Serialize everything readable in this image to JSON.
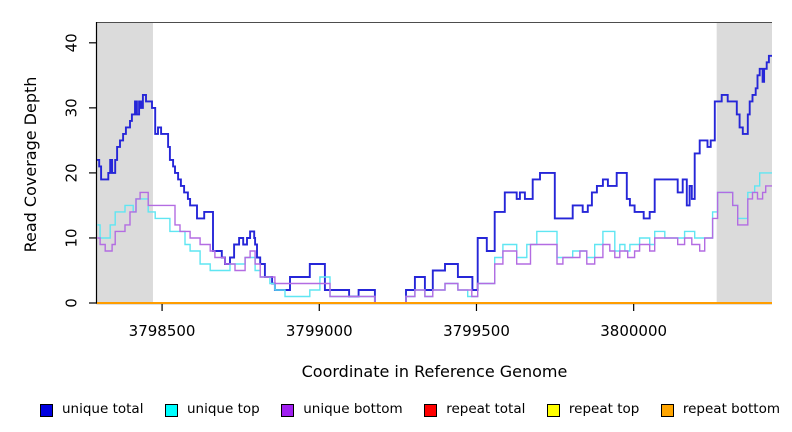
{
  "chart_data": {
    "type": "line",
    "subtype": "step",
    "title": "",
    "xlabel": "Coordinate in Reference Genome",
    "ylabel": "Read Coverage Depth",
    "xlim": [
      3798293,
      3800440
    ],
    "ylim": [
      0,
      43.2
    ],
    "grid": false,
    "legend_position": "bottom",
    "x_ticks": [
      {
        "value": 3798500,
        "label": "3798500"
      },
      {
        "value": 3799000,
        "label": "3799000"
      },
      {
        "value": 3799500,
        "label": "3799500"
      },
      {
        "value": 3800000,
        "label": "3800000"
      }
    ],
    "y_ticks": [
      {
        "value": 0,
        "label": "0"
      },
      {
        "value": 10,
        "label": "10"
      },
      {
        "value": 20,
        "label": "20"
      },
      {
        "value": 30,
        "label": "30"
      },
      {
        "value": 40,
        "label": "40"
      }
    ],
    "shaded_regions": [
      {
        "x0": 3798293,
        "x1": 3798471,
        "color": "#dbdbdb"
      },
      {
        "x0": 3800264,
        "x1": 3800440,
        "color": "#dbdbdb"
      }
    ],
    "series": [
      {
        "name": "unique total",
        "line_color": "#2626d8",
        "legend_color": "#0000e0",
        "width": 1.9,
        "points": [
          [
            3798293,
            22
          ],
          [
            3798300,
            21
          ],
          [
            3798306,
            19
          ],
          [
            3798319,
            19
          ],
          [
            3798329,
            20
          ],
          [
            3798335,
            22
          ],
          [
            3798341,
            20
          ],
          [
            3798351,
            22
          ],
          [
            3798357,
            24
          ],
          [
            3798366,
            25
          ],
          [
            3798376,
            26
          ],
          [
            3798385,
            27
          ],
          [
            3798398,
            28
          ],
          [
            3798404,
            29
          ],
          [
            3798414,
            31
          ],
          [
            3798420,
            29
          ],
          [
            3798427,
            31
          ],
          [
            3798433,
            30
          ],
          [
            3798439,
            32
          ],
          [
            3798449,
            31
          ],
          [
            3798459,
            31
          ],
          [
            3798468,
            30
          ],
          [
            3798478,
            26
          ],
          [
            3798487,
            27
          ],
          [
            3798497,
            26
          ],
          [
            3798510,
            26
          ],
          [
            3798519,
            24
          ],
          [
            3798525,
            22
          ],
          [
            3798535,
            21
          ],
          [
            3798541,
            20
          ],
          [
            3798551,
            19
          ],
          [
            3798560,
            18
          ],
          [
            3798570,
            17
          ],
          [
            3798582,
            16
          ],
          [
            3798589,
            15
          ],
          [
            3798611,
            13
          ],
          [
            3798621,
            13
          ],
          [
            3798634,
            14
          ],
          [
            3798662,
            8
          ],
          [
            3798690,
            7
          ],
          [
            3798700,
            6
          ],
          [
            3798716,
            7
          ],
          [
            3798729,
            9
          ],
          [
            3798745,
            10
          ],
          [
            3798758,
            9
          ],
          [
            3798770,
            10
          ],
          [
            3798780,
            11
          ],
          [
            3798793,
            10
          ],
          [
            3798796,
            9
          ],
          [
            3798802,
            7
          ],
          [
            3798812,
            6
          ],
          [
            3798827,
            4
          ],
          [
            3798850,
            3
          ],
          [
            3798859,
            2
          ],
          [
            3798907,
            4
          ],
          [
            3798970,
            6
          ],
          [
            3798995,
            6
          ],
          [
            3799018,
            2
          ],
          [
            3799095,
            1
          ],
          [
            3799125,
            2
          ],
          [
            3799177,
            0
          ],
          [
            3799276,
            2
          ],
          [
            3799304,
            4
          ],
          [
            3799336,
            2
          ],
          [
            3799361,
            5
          ],
          [
            3799400,
            6
          ],
          [
            3799441,
            4
          ],
          [
            3799487,
            2
          ],
          [
            3799504,
            10
          ],
          [
            3799533,
            8
          ],
          [
            3799558,
            14
          ],
          [
            3799590,
            17
          ],
          [
            3799628,
            16
          ],
          [
            3799638,
            17
          ],
          [
            3799654,
            16
          ],
          [
            3799679,
            19
          ],
          [
            3799702,
            20
          ],
          [
            3799749,
            13
          ],
          [
            3799765,
            13
          ],
          [
            3799806,
            15
          ],
          [
            3799838,
            14
          ],
          [
            3799854,
            15
          ],
          [
            3799867,
            17
          ],
          [
            3799883,
            18
          ],
          [
            3799902,
            19
          ],
          [
            3799918,
            18
          ],
          [
            3799946,
            20
          ],
          [
            3799978,
            16
          ],
          [
            3799988,
            15
          ],
          [
            3800003,
            14
          ],
          [
            3800032,
            13
          ],
          [
            3800051,
            14
          ],
          [
            3800067,
            19
          ],
          [
            3800140,
            17
          ],
          [
            3800156,
            19
          ],
          [
            3800169,
            15
          ],
          [
            3800178,
            18
          ],
          [
            3800185,
            16
          ],
          [
            3800194,
            23
          ],
          [
            3800210,
            25
          ],
          [
            3800235,
            24
          ],
          [
            3800245,
            25
          ],
          [
            3800258,
            31
          ],
          [
            3800280,
            32
          ],
          [
            3800299,
            31
          ],
          [
            3800328,
            29
          ],
          [
            3800337,
            27
          ],
          [
            3800347,
            26
          ],
          [
            3800363,
            29
          ],
          [
            3800369,
            31
          ],
          [
            3800378,
            32
          ],
          [
            3800388,
            33
          ],
          [
            3800394,
            35
          ],
          [
            3800401,
            36
          ],
          [
            3800410,
            34
          ],
          [
            3800415,
            36
          ],
          [
            3800423,
            37
          ],
          [
            3800430,
            38
          ],
          [
            3800440,
            38
          ]
        ]
      },
      {
        "name": "unique top",
        "line_color": "#5fe6f2",
        "legend_color": "#00ffff",
        "width": 1.4,
        "points": [
          [
            3798293,
            12
          ],
          [
            3798303,
            10
          ],
          [
            3798335,
            12
          ],
          [
            3798351,
            14
          ],
          [
            3798382,
            15
          ],
          [
            3798408,
            14
          ],
          [
            3798417,
            16
          ],
          [
            3798456,
            14
          ],
          [
            3798478,
            13
          ],
          [
            3798525,
            11
          ],
          [
            3798573,
            9
          ],
          [
            3798589,
            8
          ],
          [
            3798621,
            6
          ],
          [
            3798653,
            5
          ],
          [
            3798684,
            5
          ],
          [
            3798716,
            6
          ],
          [
            3798764,
            7
          ],
          [
            3798796,
            5
          ],
          [
            3798812,
            4
          ],
          [
            3798843,
            3
          ],
          [
            3798859,
            2
          ],
          [
            3798891,
            1
          ],
          [
            3798970,
            2
          ],
          [
            3799002,
            4
          ],
          [
            3799034,
            1
          ],
          [
            3799177,
            0
          ],
          [
            3799276,
            1
          ],
          [
            3799304,
            2
          ],
          [
            3799336,
            1
          ],
          [
            3799361,
            2
          ],
          [
            3799400,
            3
          ],
          [
            3799441,
            2
          ],
          [
            3799472,
            1
          ],
          [
            3799504,
            3
          ],
          [
            3799558,
            7
          ],
          [
            3799584,
            9
          ],
          [
            3799628,
            7
          ],
          [
            3799660,
            9
          ],
          [
            3799692,
            11
          ],
          [
            3799756,
            7
          ],
          [
            3799806,
            8
          ],
          [
            3799851,
            7
          ],
          [
            3799876,
            9
          ],
          [
            3799902,
            11
          ],
          [
            3799940,
            8
          ],
          [
            3799956,
            9
          ],
          [
            3799972,
            8
          ],
          [
            3799988,
            9
          ],
          [
            3800019,
            10
          ],
          [
            3800051,
            9
          ],
          [
            3800067,
            11
          ],
          [
            3800099,
            10
          ],
          [
            3800162,
            11
          ],
          [
            3800194,
            10
          ],
          [
            3800251,
            14
          ],
          [
            3800267,
            17
          ],
          [
            3800315,
            15
          ],
          [
            3800331,
            13
          ],
          [
            3800363,
            17
          ],
          [
            3800385,
            18
          ],
          [
            3800401,
            20
          ],
          [
            3800440,
            20
          ]
        ]
      },
      {
        "name": "unique bottom",
        "line_color": "#b36ce2",
        "legend_color": "#a020f0",
        "width": 1.4,
        "points": [
          [
            3798293,
            10
          ],
          [
            3798303,
            9
          ],
          [
            3798319,
            8
          ],
          [
            3798341,
            9
          ],
          [
            3798351,
            11
          ],
          [
            3798382,
            12
          ],
          [
            3798398,
            14
          ],
          [
            3798417,
            16
          ],
          [
            3798430,
            17
          ],
          [
            3798456,
            15
          ],
          [
            3798478,
            15
          ],
          [
            3798541,
            12
          ],
          [
            3798557,
            11
          ],
          [
            3798589,
            10
          ],
          [
            3798621,
            9
          ],
          [
            3798653,
            8
          ],
          [
            3798668,
            7
          ],
          [
            3798700,
            6
          ],
          [
            3798732,
            5
          ],
          [
            3798764,
            7
          ],
          [
            3798780,
            8
          ],
          [
            3798796,
            6
          ],
          [
            3798812,
            4
          ],
          [
            3798859,
            3
          ],
          [
            3798970,
            3
          ],
          [
            3799034,
            1
          ],
          [
            3799177,
            0
          ],
          [
            3799276,
            1
          ],
          [
            3799304,
            2
          ],
          [
            3799336,
            1
          ],
          [
            3799361,
            2
          ],
          [
            3799400,
            3
          ],
          [
            3799441,
            2
          ],
          [
            3799485,
            1
          ],
          [
            3799504,
            3
          ],
          [
            3799558,
            6
          ],
          [
            3799584,
            8
          ],
          [
            3799628,
            6
          ],
          [
            3799672,
            9
          ],
          [
            3799756,
            6
          ],
          [
            3799775,
            7
          ],
          [
            3799806,
            7
          ],
          [
            3799829,
            8
          ],
          [
            3799851,
            6
          ],
          [
            3799876,
            7
          ],
          [
            3799902,
            9
          ],
          [
            3799924,
            8
          ],
          [
            3799940,
            7
          ],
          [
            3799956,
            8
          ],
          [
            3799981,
            7
          ],
          [
            3800003,
            8
          ],
          [
            3800019,
            9
          ],
          [
            3800051,
            8
          ],
          [
            3800067,
            10
          ],
          [
            3800099,
            10
          ],
          [
            3800140,
            9
          ],
          [
            3800162,
            10
          ],
          [
            3800185,
            9
          ],
          [
            3800210,
            8
          ],
          [
            3800226,
            10
          ],
          [
            3800251,
            13
          ],
          [
            3800267,
            17
          ],
          [
            3800299,
            17
          ],
          [
            3800315,
            15
          ],
          [
            3800331,
            12
          ],
          [
            3800363,
            16
          ],
          [
            3800378,
            17
          ],
          [
            3800394,
            16
          ],
          [
            3800410,
            17
          ],
          [
            3800420,
            18
          ],
          [
            3800440,
            18
          ]
        ]
      },
      {
        "name": "repeat total",
        "line_color": "#ee0000",
        "legend_color": "#ff0000",
        "width": 1.4,
        "points": [
          [
            3798293,
            0
          ],
          [
            3800440,
            0
          ]
        ]
      },
      {
        "name": "repeat top",
        "line_color": "#ffff00",
        "legend_color": "#ffff00",
        "width": 1.4,
        "points": [
          [
            3798293,
            0
          ],
          [
            3800440,
            0
          ]
        ]
      },
      {
        "name": "repeat bottom",
        "line_color": "#ff9d00",
        "legend_color": "#ffa500",
        "width": 1.9,
        "points": [
          [
            3798293,
            0
          ],
          [
            3800440,
            0
          ]
        ]
      }
    ]
  }
}
